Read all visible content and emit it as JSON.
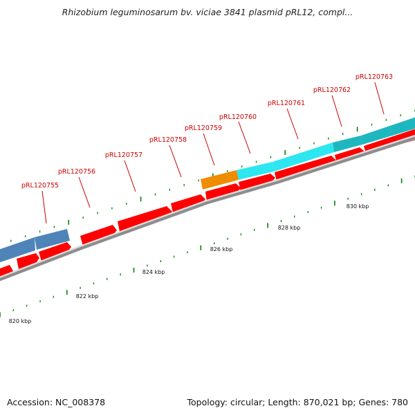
{
  "title": "Rhizobium leguminosarum bv. viciae 3841 plasmid pRL12, compl...",
  "accession": "Accession: NC_008378",
  "summary": "Topology: circular; Length: 870,021 bp; Genes: 780",
  "colors": {
    "backbone": "#8c8c8c",
    "forward_gene": "#ff0000",
    "label": "#cc0000",
    "tick": "#008000",
    "feature_blue": "#4f84b8",
    "feature_orange": "#f08c00",
    "feature_cyan": "#2ee6f0",
    "feature_teal": "#1fb7bf"
  },
  "ruler": {
    "unit": "kbp",
    "labels": [
      {
        "kbp": 820,
        "text": "820 kbp"
      },
      {
        "kbp": 822,
        "text": "822 kbp"
      },
      {
        "kbp": 824,
        "text": "824 kbp"
      },
      {
        "kbp": 826,
        "text": "826 kbp"
      },
      {
        "kbp": 828,
        "text": "828 kbp"
      },
      {
        "kbp": 830,
        "text": "830 kbp"
      }
    ]
  },
  "gene_labels": [
    {
      "text": "pRL120755"
    },
    {
      "text": "pRL120756"
    },
    {
      "text": "pRL120757"
    },
    {
      "text": "pRL120758"
    },
    {
      "text": "pRL120759"
    },
    {
      "text": "pRL120760"
    },
    {
      "text": "pRL120761"
    },
    {
      "text": "pRL120762"
    },
    {
      "text": "pRL120763"
    }
  ]
}
